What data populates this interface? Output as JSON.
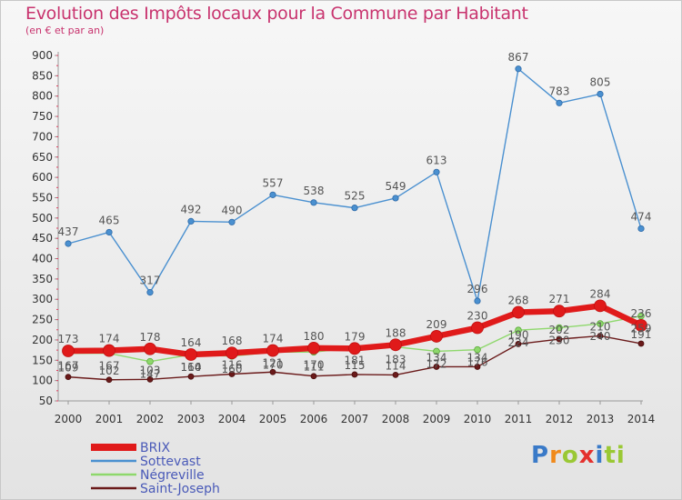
{
  "title": "Evolution des Impôts locaux pour la Commune par Habitant",
  "subtitle": "(en € et par an)",
  "logo_text": "Proxiti",
  "chart_data": {
    "type": "line",
    "title": "Evolution des Impôts locaux pour la Commune par Habitant",
    "subtitle": "(en € et par an)",
    "xlabel": "",
    "ylabel": "",
    "x": [
      "2000",
      "2001",
      "2002",
      "2003",
      "2004",
      "2005",
      "2006",
      "2007",
      "2008",
      "2009",
      "2010",
      "2011",
      "2012",
      "2013",
      "2014"
    ],
    "ylim": [
      50,
      900
    ],
    "yticks": [
      50,
      100,
      150,
      200,
      250,
      300,
      350,
      400,
      450,
      500,
      550,
      600,
      650,
      700,
      750,
      800,
      850,
      900
    ],
    "grid": false,
    "legend_position": "bottom-left",
    "series": [
      {
        "name": "BRIX",
        "color": "#e01a1a",
        "values": [
          173,
          174,
          178,
          164,
          168,
          174,
          180,
          179,
          188,
          209,
          230,
          268,
          271,
          284,
          236
        ]
      },
      {
        "name": "Sottevast",
        "color": "#4a90d0",
        "values": [
          437,
          465,
          317,
          492,
          490,
          557,
          538,
          525,
          549,
          613,
          296,
          867,
          783,
          805,
          474
        ]
      },
      {
        "name": "Négreville",
        "color": "#8ed86c",
        "values": [
          167,
          167,
          147,
          164,
          160,
          170,
          170,
          181,
          183,
          172,
          176,
          224,
          230,
          240,
          259
        ]
      },
      {
        "name": "Saint-Joseph",
        "color": "#6a1a1a",
        "values": [
          109,
          102,
          103,
          110,
          116,
          121,
          111,
          115,
          114,
          134,
          134,
          190,
          202,
          210,
          191
        ]
      }
    ]
  }
}
